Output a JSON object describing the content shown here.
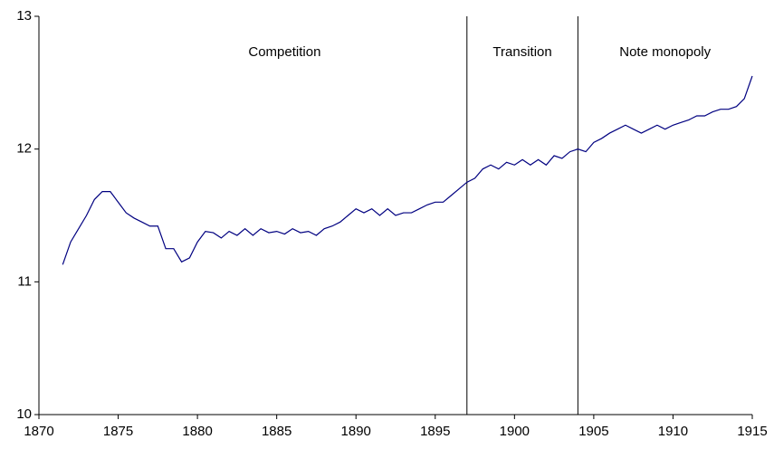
{
  "chart_data": {
    "type": "line",
    "annotations": [
      "Competition",
      "Transition",
      "Note monopoly"
    ],
    "period_boundaries": [
      1897,
      1904
    ],
    "xlim": [
      1870,
      1915
    ],
    "xticks": [
      1870,
      1875,
      1880,
      1885,
      1890,
      1895,
      1900,
      1905,
      1910,
      1915
    ],
    "ylim": [
      10,
      13
    ],
    "yticks": [
      10,
      11,
      12,
      13
    ],
    "grid": false,
    "series": [
      {
        "color": "#000080",
        "x": [
          1871.5,
          1872,
          1872.5,
          1873,
          1873.5,
          1874,
          1874.5,
          1875,
          1875.5,
          1876,
          1876.5,
          1877,
          1877.5,
          1878,
          1878.5,
          1879,
          1879.5,
          1880,
          1880.5,
          1881,
          1881.5,
          1882,
          1882.5,
          1883,
          1883.5,
          1884,
          1884.5,
          1885,
          1885.5,
          1886,
          1886.5,
          1887,
          1887.5,
          1888,
          1888.5,
          1889,
          1889.5,
          1890,
          1890.5,
          1891,
          1891.5,
          1892,
          1892.5,
          1893,
          1893.5,
          1894,
          1894.5,
          1895,
          1895.5,
          1896,
          1896.5,
          1897,
          1897.5,
          1898,
          1898.5,
          1899,
          1899.5,
          1900,
          1900.5,
          1901,
          1901.5,
          1902,
          1902.5,
          1903,
          1903.5,
          1904,
          1904.5,
          1905,
          1905.5,
          1906,
          1906.5,
          1907,
          1907.5,
          1908,
          1908.5,
          1909,
          1909.5,
          1910,
          1910.5,
          1911,
          1911.5,
          1912,
          1912.5,
          1913,
          1913.5,
          1914,
          1914.5,
          1915
        ],
        "values": [
          11.13,
          11.3,
          11.4,
          11.5,
          11.62,
          11.68,
          11.68,
          11.6,
          11.52,
          11.48,
          11.45,
          11.42,
          11.42,
          11.25,
          11.25,
          11.15,
          11.18,
          11.3,
          11.38,
          11.37,
          11.33,
          11.38,
          11.35,
          11.4,
          11.35,
          11.4,
          11.37,
          11.38,
          11.36,
          11.4,
          11.37,
          11.38,
          11.35,
          11.4,
          11.42,
          11.45,
          11.5,
          11.55,
          11.52,
          11.55,
          11.5,
          11.55,
          11.5,
          11.52,
          11.52,
          11.55,
          11.58,
          11.6,
          11.6,
          11.65,
          11.7,
          11.75,
          11.78,
          11.85,
          11.88,
          11.85,
          11.9,
          11.88,
          11.92,
          11.88,
          11.92,
          11.88,
          11.95,
          11.93,
          11.98,
          12.0,
          11.98,
          12.05,
          12.08,
          12.12,
          12.15,
          12.18,
          12.15,
          12.12,
          12.15,
          12.18,
          12.15,
          12.18,
          12.2,
          12.22,
          12.25,
          12.25,
          12.28,
          12.3,
          12.3,
          12.32,
          12.38,
          12.55
        ]
      }
    ]
  }
}
